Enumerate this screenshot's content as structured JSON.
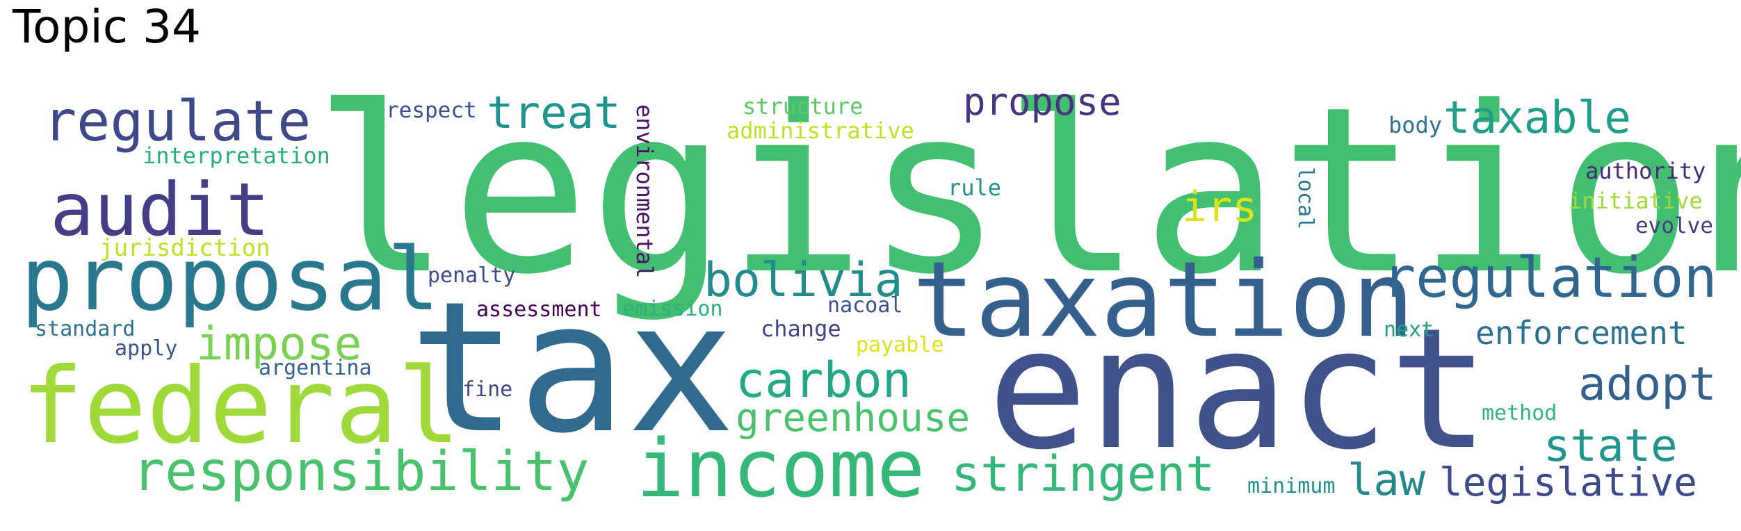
{
  "title": "Topic 34",
  "words": [
    {
      "text": "legislation",
      "color": "#43bf71"
    },
    {
      "text": "tax",
      "color": "#306a8e"
    },
    {
      "text": "enact",
      "color": "#3f5289"
    },
    {
      "text": "taxation",
      "color": "#355f8d"
    },
    {
      "text": "federal",
      "color": "#9fda3a"
    },
    {
      "text": "income",
      "color": "#35b779"
    },
    {
      "text": "proposal",
      "color": "#2a788e"
    },
    {
      "text": "audit",
      "color": "#433e85"
    },
    {
      "text": "regulate",
      "color": "#3f4889"
    },
    {
      "text": "regulation",
      "color": "#31678e"
    },
    {
      "text": "responsibility",
      "color": "#4ac16d"
    },
    {
      "text": "stringent",
      "color": "#35b779"
    },
    {
      "text": "carbon",
      "color": "#22a884"
    },
    {
      "text": "greenhouse",
      "color": "#4ac16d"
    },
    {
      "text": "bolivia",
      "color": "#228c8d"
    },
    {
      "text": "impose",
      "color": "#7ad151"
    },
    {
      "text": "treat",
      "color": "#1f948c"
    },
    {
      "text": "taxable",
      "color": "#1f9e89"
    },
    {
      "text": "propose",
      "color": "#46337e"
    },
    {
      "text": "irs",
      "color": "#dde318"
    },
    {
      "text": "adopt",
      "color": "#34608d"
    },
    {
      "text": "state",
      "color": "#1f968b"
    },
    {
      "text": "law",
      "color": "#23898e"
    },
    {
      "text": "legislative",
      "color": "#3e4989"
    },
    {
      "text": "enforcement",
      "color": "#2c728e"
    },
    {
      "text": "respect",
      "color": "#3b518b"
    },
    {
      "text": "structure",
      "color": "#5ec962"
    },
    {
      "text": "administrative",
      "color": "#c0df25"
    },
    {
      "text": "interpretation",
      "color": "#26ad81"
    },
    {
      "text": "jurisdiction",
      "color": "#c2df23"
    },
    {
      "text": "environmental",
      "color": "#471164"
    },
    {
      "text": "penalty",
      "color": "#3e4a89"
    },
    {
      "text": "assessment",
      "color": "#440154"
    },
    {
      "text": "emission",
      "color": "#2db27d"
    },
    {
      "text": "nacoal",
      "color": "#3b518b"
    },
    {
      "text": "change",
      "color": "#414487"
    },
    {
      "text": "payable",
      "color": "#dde318"
    },
    {
      "text": "rule",
      "color": "#21918c"
    },
    {
      "text": "local",
      "color": "#2a788e"
    },
    {
      "text": "body",
      "color": "#2c728e"
    },
    {
      "text": "authority",
      "color": "#482878"
    },
    {
      "text": "initiative",
      "color": "#a0da39"
    },
    {
      "text": "evolve",
      "color": "#443983"
    },
    {
      "text": "next",
      "color": "#1fa187"
    },
    {
      "text": "method",
      "color": "#2fb47c"
    },
    {
      "text": "minimum",
      "color": "#21918c"
    },
    {
      "text": "standard",
      "color": "#2c728e"
    },
    {
      "text": "apply",
      "color": "#3b528b"
    },
    {
      "text": "argentina",
      "color": "#355f8d"
    },
    {
      "text": "fine",
      "color": "#3e4989"
    }
  ]
}
